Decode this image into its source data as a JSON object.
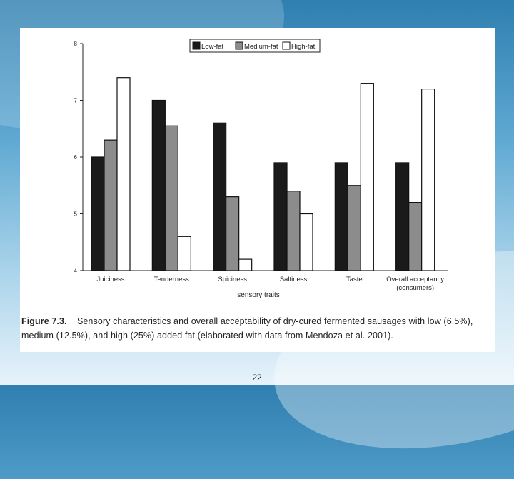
{
  "slide": {
    "page_number": "22",
    "caption_label": "Figure 7.3.",
    "caption_text": "Sensory characteristics and overall acceptability of dry-cured fermented sausages with low (6.5%), medium (12.5%), and high (25%) added fat (elaborated with data from Mendoza et al. 2001)."
  },
  "chart_data": {
    "type": "bar",
    "xlabel": "sensory traits",
    "ylabel": "",
    "ylim": [
      4,
      8
    ],
    "yticks": [
      4,
      5,
      6,
      7,
      8
    ],
    "categories": [
      [
        "Juiciness"
      ],
      [
        "Tenderness"
      ],
      [
        "Spiciness"
      ],
      [
        "Saltiness"
      ],
      [
        "Taste"
      ],
      [
        "Overall acceptancy",
        "(consumers)"
      ]
    ],
    "series": [
      {
        "name": "Low-fat",
        "color": "#1a1a1a",
        "values": [
          6.0,
          7.0,
          6.6,
          5.9,
          5.9,
          5.9
        ]
      },
      {
        "name": "Medium-fat",
        "color": "#8c8c8c",
        "values": [
          6.3,
          6.55,
          5.3,
          5.4,
          5.5,
          5.2
        ]
      },
      {
        "name": "High-fat",
        "color": "#ffffff",
        "values": [
          7.4,
          4.6,
          4.2,
          5.0,
          7.3,
          7.2
        ]
      }
    ],
    "legend_position": "top-right",
    "grid": false
  }
}
